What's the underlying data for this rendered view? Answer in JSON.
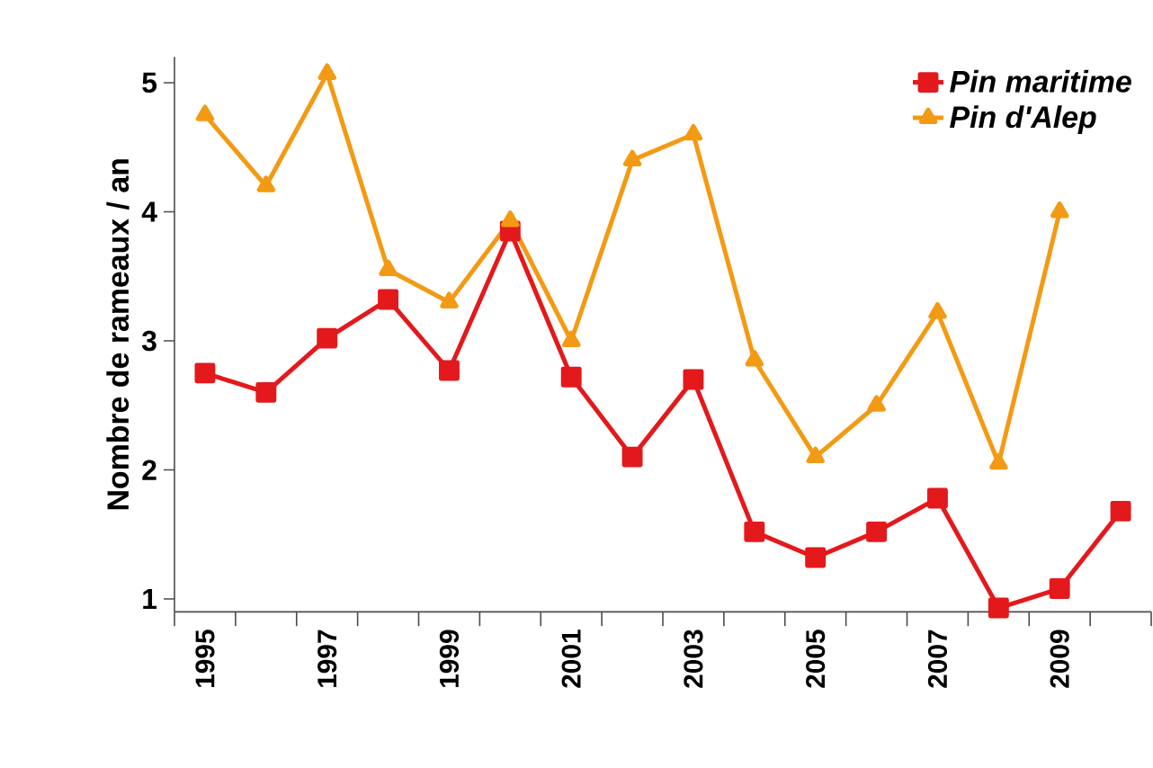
{
  "chart_data": {
    "type": "line",
    "ylabel": "Nombre de rameaux / an",
    "categories": [
      "1995",
      null,
      "1997",
      null,
      "1999",
      null,
      "2001",
      null,
      "2003",
      null,
      "2005",
      null,
      "2007",
      null,
      "2009",
      null
    ],
    "series": [
      {
        "name": "Pin maritime",
        "color": "#e3191c",
        "marker": "square",
        "values": [
          2.75,
          2.6,
          3.02,
          3.32,
          2.77,
          3.85,
          2.72,
          2.1,
          2.7,
          1.52,
          1.32,
          1.52,
          1.78,
          0.93,
          1.08,
          1.68
        ]
      },
      {
        "name": "Pin d'Alep",
        "color": "#f39a14",
        "marker": "triangle",
        "values": [
          4.75,
          4.2,
          5.07,
          3.55,
          3.3,
          3.93,
          3.0,
          4.4,
          4.6,
          2.85,
          2.1,
          2.5,
          3.22,
          2.05,
          4.0,
          null
        ]
      }
    ],
    "ylim": [
      0.9,
      5.2
    ],
    "yticks": [
      1,
      2,
      3,
      4,
      5
    ],
    "grid": false,
    "legend": "top right",
    "line_style": "solid"
  }
}
